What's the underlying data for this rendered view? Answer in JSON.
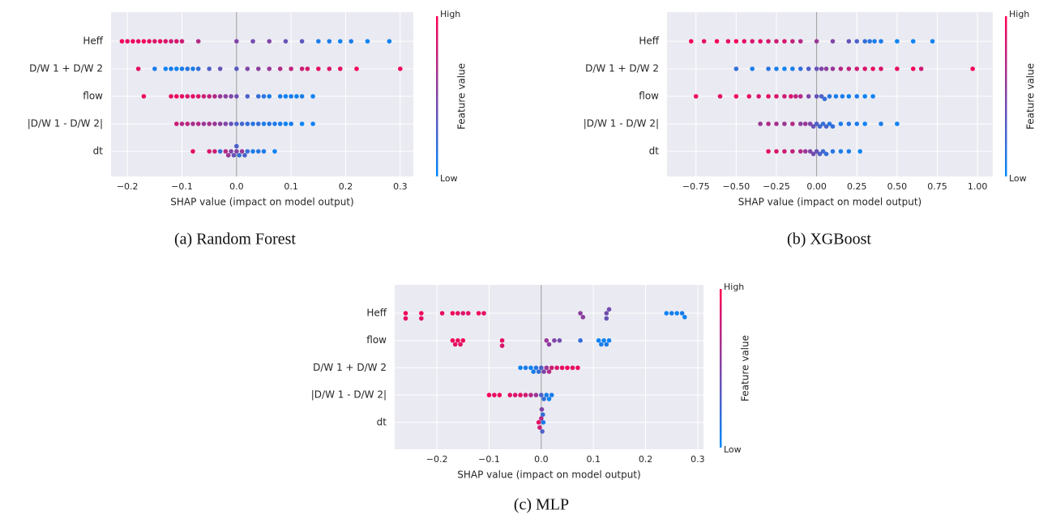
{
  "chart_data": [
    {
      "type": "beeswarm",
      "title": "(a) Random Forest",
      "xlabel": "SHAP value (impact on model output)",
      "xlim": [
        -0.23,
        0.324
      ],
      "xticks": [
        {
          "value": -0.2,
          "label": "−0.2"
        },
        {
          "value": -0.1,
          "label": "−0.1"
        },
        {
          "value": 0,
          "label": "0.0"
        },
        0.1,
        0.2,
        0.3
      ],
      "grid": true,
      "colorbar": {
        "label": "Feature value",
        "high": "High",
        "low": "Low",
        "colors": [
          "#008afb",
          "#ff0052"
        ]
      },
      "features": [
        {
          "name": "Heff",
          "shap": [
            -0.21,
            -0.2,
            -0.19,
            -0.18,
            -0.17,
            -0.16,
            -0.15,
            -0.14,
            -0.13,
            -0.12,
            -0.11,
            -0.1,
            -0.07,
            0.0,
            0.03,
            0.06,
            0.09,
            0.12,
            0.15,
            0.17,
            0.19,
            0.21,
            0.24,
            0.28
          ],
          "feature_values": [
            0.95,
            0.9,
            0.95,
            0.9,
            0.95,
            0.9,
            0.85,
            0.9,
            0.85,
            0.8,
            0.85,
            0.8,
            0.7,
            0.5,
            0.45,
            0.5,
            0.4,
            0.35,
            0.1,
            0.1,
            0.05,
            0.1,
            0.05,
            0.05
          ]
        },
        {
          "name": "D/W 1 + D/W 2",
          "shap": [
            -0.18,
            -0.15,
            -0.13,
            -0.12,
            -0.11,
            -0.1,
            -0.09,
            -0.08,
            -0.07,
            -0.05,
            -0.03,
            0.0,
            0.02,
            0.04,
            0.06,
            0.08,
            0.1,
            0.12,
            0.13,
            0.15,
            0.17,
            0.19,
            0.22,
            0.3
          ],
          "feature_values": [
            0.9,
            0.1,
            0.05,
            0.1,
            0.05,
            0.1,
            0.15,
            0.1,
            0.2,
            0.3,
            0.4,
            0.35,
            0.5,
            0.55,
            0.6,
            0.7,
            0.75,
            0.8,
            0.85,
            0.9,
            0.85,
            0.9,
            0.95,
            0.95
          ]
        },
        {
          "name": "flow",
          "shap": [
            -0.17,
            -0.12,
            -0.11,
            -0.1,
            -0.09,
            -0.08,
            -0.07,
            -0.06,
            -0.05,
            -0.04,
            -0.03,
            -0.02,
            -0.01,
            0.0,
            0.02,
            0.04,
            0.05,
            0.06,
            0.08,
            0.09,
            0.1,
            0.11,
            0.12,
            0.14
          ],
          "feature_values": [
            0.95,
            0.9,
            0.95,
            0.9,
            0.85,
            0.9,
            0.85,
            0.8,
            0.75,
            0.7,
            0.6,
            0.55,
            0.5,
            0.45,
            0.3,
            0.2,
            0.15,
            0.1,
            0.1,
            0.05,
            0.1,
            0.05,
            0.1,
            0.05
          ]
        },
        {
          "name": "|D/W 1 - D/W 2|",
          "shap": [
            -0.11,
            -0.1,
            -0.09,
            -0.08,
            -0.07,
            -0.06,
            -0.05,
            -0.04,
            -0.03,
            -0.02,
            -0.01,
            0.0,
            0.01,
            0.02,
            0.03,
            0.04,
            0.05,
            0.06,
            0.07,
            0.08,
            0.09,
            0.1,
            0.12,
            0.14
          ],
          "feature_values": [
            0.8,
            0.7,
            0.75,
            0.65,
            0.7,
            0.6,
            0.65,
            0.6,
            0.55,
            0.5,
            0.4,
            0.3,
            0.25,
            0.2,
            0.15,
            0.2,
            0.1,
            0.15,
            0.1,
            0.1,
            0.05,
            0.1,
            0.05,
            0.05
          ]
        },
        {
          "name": "dt",
          "shap": [
            -0.08,
            -0.05,
            -0.04,
            -0.03,
            -0.02,
            -0.015,
            -0.01,
            -0.005,
            0.0,
            0.0,
            0.005,
            0.01,
            0.015,
            0.02,
            0.03,
            0.04,
            0.05,
            0.07
          ],
          "feature_values": [
            0.9,
            0.85,
            0.8,
            0.2,
            0.7,
            0.6,
            0.5,
            0.4,
            0.5,
            0.3,
            0.2,
            0.6,
            0.3,
            0.2,
            0.1,
            0.15,
            0.1,
            0.05
          ]
        }
      ]
    },
    {
      "type": "beeswarm",
      "title": "(b) XGBoost",
      "xlabel": "SHAP value (impact on model output)",
      "xlim": [
        -0.93,
        1.095
      ],
      "xticks": [
        {
          "value": -0.75,
          "label": "−0.75"
        },
        {
          "value": -0.5,
          "label": "−0.50"
        },
        {
          "value": -0.25,
          "label": "−0.25"
        },
        {
          "value": 0,
          "label": "0.00"
        },
        0.25,
        {
          "value": 0.5,
          "label": "0.50"
        },
        0.75,
        {
          "value": 1,
          "label": "1.00"
        }
      ],
      "grid": true,
      "colorbar": {
        "label": "Feature value",
        "high": "High",
        "low": "Low",
        "colors": [
          "#008afb",
          "#ff0052"
        ]
      },
      "features": [
        {
          "name": "Heff",
          "shap": [
            -0.78,
            -0.7,
            -0.62,
            -0.55,
            -0.5,
            -0.45,
            -0.4,
            -0.35,
            -0.3,
            -0.25,
            -0.2,
            -0.15,
            -0.1,
            0.0,
            0.1,
            0.2,
            0.25,
            0.3,
            0.33,
            0.36,
            0.4,
            0.5,
            0.6,
            0.72
          ],
          "feature_values": [
            0.95,
            0.9,
            0.95,
            0.9,
            0.95,
            0.9,
            0.85,
            0.9,
            0.85,
            0.8,
            0.85,
            0.75,
            0.7,
            0.6,
            0.5,
            0.4,
            0.3,
            0.2,
            0.15,
            0.1,
            0.1,
            0.05,
            0.05,
            0.05
          ]
        },
        {
          "name": "D/W 1 + D/W 2",
          "shap": [
            -0.5,
            -0.4,
            -0.3,
            -0.25,
            -0.2,
            -0.15,
            -0.1,
            -0.05,
            0.0,
            0.03,
            0.06,
            0.1,
            0.15,
            0.2,
            0.25,
            0.3,
            0.35,
            0.4,
            0.5,
            0.6,
            0.65,
            0.97
          ],
          "feature_values": [
            0.2,
            0.1,
            0.15,
            0.1,
            0.05,
            0.1,
            0.2,
            0.3,
            0.4,
            0.5,
            0.55,
            0.6,
            0.7,
            0.75,
            0.8,
            0.85,
            0.9,
            0.85,
            0.9,
            0.95,
            0.8,
            0.95
          ]
        },
        {
          "name": "flow",
          "shap": [
            -0.75,
            -0.6,
            -0.5,
            -0.42,
            -0.36,
            -0.3,
            -0.25,
            -0.2,
            -0.16,
            -0.13,
            -0.1,
            -0.05,
            0.0,
            0.03,
            0.05,
            0.08,
            0.12,
            0.16,
            0.2,
            0.25,
            0.3,
            0.35
          ],
          "feature_values": [
            0.95,
            0.9,
            0.95,
            0.9,
            0.85,
            0.9,
            0.85,
            0.8,
            0.85,
            0.75,
            0.7,
            0.5,
            0.4,
            0.3,
            0.2,
            0.15,
            0.1,
            0.1,
            0.05,
            0.1,
            0.05,
            0.05
          ]
        },
        {
          "name": "|D/W 1 - D/W 2|",
          "shap": [
            -0.35,
            -0.3,
            -0.25,
            -0.2,
            -0.15,
            -0.1,
            -0.07,
            -0.04,
            -0.02,
            0.0,
            0.02,
            0.04,
            0.06,
            0.08,
            0.1,
            0.15,
            0.2,
            0.25,
            0.3,
            0.4,
            0.5
          ],
          "feature_values": [
            0.6,
            0.7,
            0.65,
            0.6,
            0.7,
            0.55,
            0.6,
            0.5,
            0.4,
            0.3,
            0.25,
            0.2,
            0.3,
            0.15,
            0.2,
            0.1,
            0.15,
            0.1,
            0.05,
            0.1,
            0.05
          ]
        },
        {
          "name": "dt",
          "shap": [
            -0.3,
            -0.25,
            -0.2,
            -0.15,
            -0.1,
            -0.07,
            -0.04,
            -0.02,
            0.0,
            0.02,
            0.04,
            0.06,
            0.1,
            0.15,
            0.2,
            0.27
          ],
          "feature_values": [
            0.9,
            0.85,
            0.8,
            0.75,
            0.7,
            0.6,
            0.5,
            0.45,
            0.4,
            0.3,
            0.25,
            0.2,
            0.15,
            0.1,
            0.1,
            0.05
          ]
        }
      ]
    },
    {
      "type": "beeswarm",
      "title": "(c) MLP",
      "xlabel": "SHAP value (impact on model output)",
      "xlim": [
        -0.281,
        0.311
      ],
      "xticks": [
        {
          "value": -0.2,
          "label": "−0.2"
        },
        {
          "value": -0.1,
          "label": "−0.1"
        },
        {
          "value": 0,
          "label": "0.0"
        },
        0.1,
        0.2,
        0.3
      ],
      "grid": true,
      "colorbar": {
        "label": "Feature value",
        "high": "High",
        "low": "Low",
        "colors": [
          "#008afb",
          "#ff0052"
        ]
      },
      "features": [
        {
          "name": "Heff",
          "shap": [
            -0.26,
            -0.26,
            -0.23,
            -0.23,
            -0.19,
            -0.17,
            -0.16,
            -0.15,
            -0.14,
            -0.12,
            -0.11,
            0.075,
            0.08,
            0.125,
            0.125,
            0.13,
            0.24,
            0.25,
            0.26,
            0.27,
            0.275
          ],
          "feature_values": [
            0.95,
            0.9,
            0.95,
            0.9,
            0.9,
            0.95,
            0.9,
            0.85,
            0.9,
            0.95,
            0.9,
            0.55,
            0.55,
            0.45,
            0.4,
            0.45,
            0.05,
            0.1,
            0.05,
            0.1,
            0.05
          ]
        },
        {
          "name": "flow",
          "shap": [
            -0.17,
            -0.165,
            -0.16,
            -0.155,
            -0.15,
            -0.075,
            -0.075,
            0.01,
            0.015,
            0.025,
            0.035,
            0.075,
            0.11,
            0.115,
            0.12,
            0.125,
            0.13
          ],
          "feature_values": [
            0.95,
            0.9,
            0.95,
            0.9,
            0.95,
            0.9,
            0.85,
            0.6,
            0.55,
            0.5,
            0.45,
            0.2,
            0.05,
            0.1,
            0.05,
            0.1,
            0.05
          ]
        },
        {
          "name": "D/W 1 + D/W 2",
          "shap": [
            -0.04,
            -0.03,
            -0.02,
            -0.015,
            -0.01,
            -0.005,
            0.0,
            0.005,
            0.01,
            0.015,
            0.02,
            0.03,
            0.04,
            0.05,
            0.06,
            0.07
          ],
          "feature_values": [
            0.05,
            0.1,
            0.05,
            0.1,
            0.15,
            0.2,
            0.3,
            0.5,
            0.6,
            0.7,
            0.8,
            0.85,
            0.9,
            0.95,
            0.9,
            0.95
          ]
        },
        {
          "name": "|D/W 1 - D/W 2|",
          "shap": [
            -0.1,
            -0.09,
            -0.08,
            -0.06,
            -0.05,
            -0.04,
            -0.03,
            -0.02,
            -0.01,
            0.0,
            0.005,
            0.01,
            0.015,
            0.02
          ],
          "feature_values": [
            0.95,
            0.9,
            0.95,
            0.9,
            0.85,
            0.9,
            0.8,
            0.7,
            0.6,
            0.3,
            0.2,
            0.1,
            0.05,
            0.1
          ]
        },
        {
          "name": "dt",
          "shap": [
            -0.005,
            -0.003,
            0.0,
            0.002,
            0.004,
            0.003,
            0.001
          ],
          "feature_values": [
            0.9,
            0.8,
            0.7,
            0.3,
            0.1,
            0.2,
            0.5
          ]
        }
      ]
    }
  ]
}
